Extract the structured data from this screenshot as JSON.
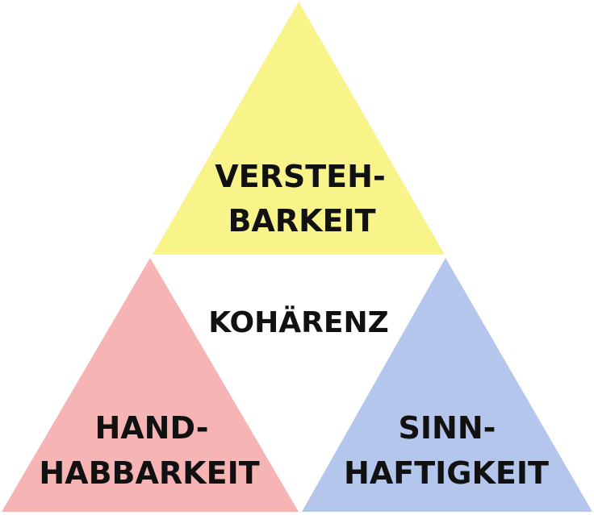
{
  "diagram": {
    "colors": {
      "top_triangle": "#f8f48a",
      "left_triangle": "#f7b4b4",
      "right_triangle": "#b4c6ec",
      "background": "#ffffff",
      "text": "#111111"
    },
    "top": {
      "line1": "VERSTEH-",
      "line2": "BARKEIT"
    },
    "center": {
      "label": "KOHÄRENZ"
    },
    "left": {
      "line1": "HAND-",
      "line2": "HABBARKEIT"
    },
    "right": {
      "line1": "SINN-",
      "line2": "HAFTIGKEIT"
    }
  }
}
